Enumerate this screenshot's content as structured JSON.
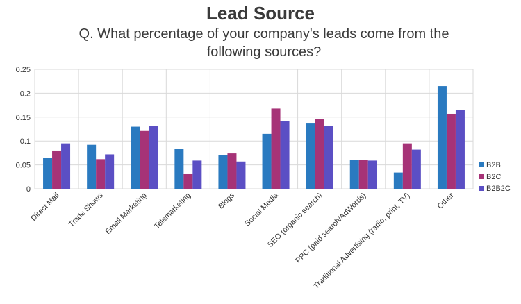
{
  "chart_data": {
    "type": "bar",
    "title": "Lead Source",
    "subtitle": "Q. What percentage of your company's leads come from the following sources?",
    "xlabel": "",
    "ylabel": "",
    "ylim": [
      0,
      0.25
    ],
    "yticks": [
      "0",
      "0.05",
      "0.1",
      "0.15",
      "0.2",
      "0.25"
    ],
    "grid": true,
    "legend_position": "right",
    "categories": [
      "Direct Mail",
      "Trade Shows",
      "Email Marketing",
      "Telemarketing",
      "Blogs",
      "Social Media",
      "SEO (organic search)",
      "PPC (paid search/AdWords)",
      "Traditional Advertising (radio, print, TV)",
      "Other"
    ],
    "series": [
      {
        "name": "B2B",
        "color": "#2a7ac0",
        "values": [
          0.065,
          0.092,
          0.13,
          0.083,
          0.071,
          0.115,
          0.138,
          0.06,
          0.034,
          0.215
        ]
      },
      {
        "name": "B2C",
        "color": "#a63377",
        "values": [
          0.08,
          0.062,
          0.121,
          0.032,
          0.074,
          0.168,
          0.146,
          0.061,
          0.095,
          0.157
        ]
      },
      {
        "name": "B2B2C",
        "color": "#5b4fc4",
        "values": [
          0.095,
          0.072,
          0.132,
          0.059,
          0.057,
          0.142,
          0.132,
          0.059,
          0.082,
          0.165
        ]
      }
    ]
  }
}
